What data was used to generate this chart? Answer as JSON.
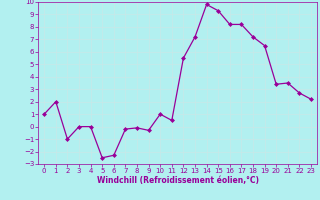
{
  "x": [
    0,
    1,
    2,
    3,
    4,
    5,
    6,
    7,
    8,
    9,
    10,
    11,
    12,
    13,
    14,
    15,
    16,
    17,
    18,
    19,
    20,
    21,
    22,
    23
  ],
  "y": [
    1,
    2,
    -1,
    0,
    0,
    -2.5,
    -2.3,
    -0.2,
    -0.1,
    -0.3,
    1,
    0.5,
    5.5,
    7.2,
    9.8,
    9.3,
    8.2,
    8.2,
    7.2,
    6.5,
    3.4,
    3.5,
    2.7,
    2.2
  ],
  "line_color": "#990099",
  "marker": "D",
  "marker_size": 2,
  "bg_color": "#b2f0f0",
  "grid_color": "#c8e8e8",
  "xlabel": "Windchill (Refroidissement éolien,°C)",
  "ylim": [
    -3,
    10
  ],
  "xlim_min": -0.5,
  "xlim_max": 23.5,
  "yticks": [
    -3,
    -2,
    -1,
    0,
    1,
    2,
    3,
    4,
    5,
    6,
    7,
    8,
    9,
    10
  ],
  "xticks": [
    0,
    1,
    2,
    3,
    4,
    5,
    6,
    7,
    8,
    9,
    10,
    11,
    12,
    13,
    14,
    15,
    16,
    17,
    18,
    19,
    20,
    21,
    22,
    23
  ],
  "tick_color": "#990099",
  "label_color": "#990099",
  "font_size_ticks": 5,
  "font_size_xlabel": 5.5,
  "linewidth": 0.9
}
